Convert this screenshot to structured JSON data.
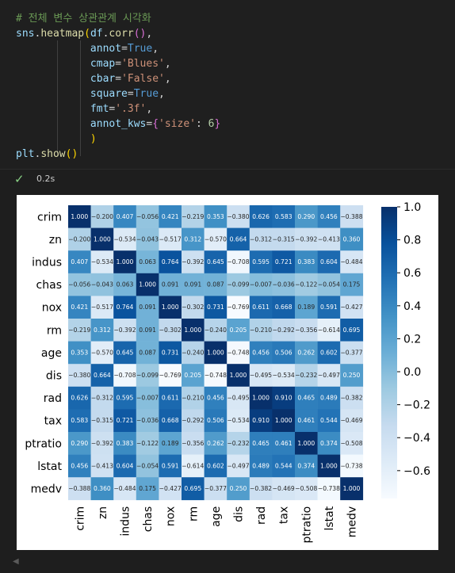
{
  "code": {
    "comment": "# 전체 변수 상관관계 시각화",
    "module": "sns",
    "func": "heatmap",
    "df": "df",
    "corr": "corr",
    "params": [
      {
        "name": "annot",
        "value": "True",
        "type": "kw"
      },
      {
        "name": "cmap",
        "value": "'Blues'",
        "type": "str"
      },
      {
        "name": "cbar",
        "value": "'False'",
        "type": "str"
      },
      {
        "name": "square",
        "value": "True",
        "type": "kw"
      },
      {
        "name": "fmt",
        "value": "'.3f'",
        "type": "str"
      }
    ],
    "annot_kws_name": "annot_kws",
    "annot_kws_key": "'size'",
    "annot_kws_value": "6",
    "show_module": "plt",
    "show_func": "show"
  },
  "status": {
    "icon": "check-icon",
    "check_color": "#89d185",
    "time": "0.2s"
  },
  "chart_data": {
    "type": "heatmap",
    "colormap": "Blues",
    "variables": [
      "crim",
      "zn",
      "indus",
      "chas",
      "nox",
      "rm",
      "age",
      "dis",
      "rad",
      "tax",
      "ptratio",
      "lstat",
      "medv"
    ],
    "matrix": [
      [
        1.0,
        -0.2,
        0.407,
        -0.056,
        0.421,
        -0.219,
        0.353,
        -0.38,
        0.626,
        0.583,
        0.29,
        0.456,
        -0.388
      ],
      [
        -0.2,
        1.0,
        -0.534,
        -0.043,
        -0.517,
        0.312,
        -0.57,
        0.664,
        -0.312,
        -0.315,
        -0.392,
        -0.413,
        0.36
      ],
      [
        0.407,
        -0.534,
        1.0,
        0.063,
        0.764,
        -0.392,
        0.645,
        -0.708,
        0.595,
        0.721,
        0.383,
        0.604,
        -0.484
      ],
      [
        -0.056,
        -0.043,
        0.063,
        1.0,
        0.091,
        0.091,
        0.087,
        -0.099,
        -0.007,
        -0.036,
        -0.122,
        -0.054,
        0.175
      ],
      [
        0.421,
        -0.517,
        0.764,
        0.091,
        1.0,
        -0.302,
        0.731,
        -0.769,
        0.611,
        0.668,
        0.189,
        0.591,
        -0.427
      ],
      [
        -0.219,
        0.312,
        -0.392,
        0.091,
        -0.302,
        1.0,
        -0.24,
        0.205,
        -0.21,
        -0.292,
        -0.356,
        -0.614,
        0.695
      ],
      [
        0.353,
        -0.57,
        0.645,
        0.087,
        0.731,
        -0.24,
        1.0,
        -0.748,
        0.456,
        0.506,
        0.262,
        0.602,
        -0.377
      ],
      [
        -0.38,
        0.664,
        -0.708,
        -0.099,
        -0.769,
        0.205,
        -0.748,
        1.0,
        -0.495,
        -0.534,
        -0.232,
        -0.497,
        0.25
      ],
      [
        0.626,
        -0.312,
        0.595,
        -0.007,
        0.611,
        -0.21,
        0.456,
        -0.495,
        1.0,
        0.91,
        0.465,
        0.489,
        -0.382
      ],
      [
        0.583,
        -0.315,
        0.721,
        -0.036,
        0.668,
        -0.292,
        0.506,
        -0.534,
        0.91,
        1.0,
        0.461,
        0.544,
        -0.469
      ],
      [
        0.29,
        -0.392,
        0.383,
        -0.122,
        0.189,
        -0.356,
        0.262,
        -0.232,
        0.465,
        0.461,
        1.0,
        0.374,
        -0.508
      ],
      [
        0.456,
        -0.413,
        0.604,
        -0.054,
        0.591,
        -0.614,
        0.602,
        -0.497,
        0.489,
        0.544,
        0.374,
        1.0,
        -0.738
      ],
      [
        -0.388,
        0.36,
        -0.484,
        0.175,
        -0.427,
        0.695,
        -0.377,
        0.25,
        -0.382,
        -0.469,
        -0.508,
        -0.738,
        1.0
      ]
    ],
    "colorbar": {
      "range": [
        -0.769,
        1.0
      ],
      "ticks": [
        1.0,
        0.8,
        0.6,
        0.4,
        0.2,
        0.0,
        -0.2,
        -0.4,
        -0.6
      ],
      "tick_labels": [
        "1.0",
        "0.8",
        "0.6",
        "0.4",
        "0.2",
        "0.0",
        "−0.2",
        "−0.4",
        "−0.6"
      ]
    }
  }
}
